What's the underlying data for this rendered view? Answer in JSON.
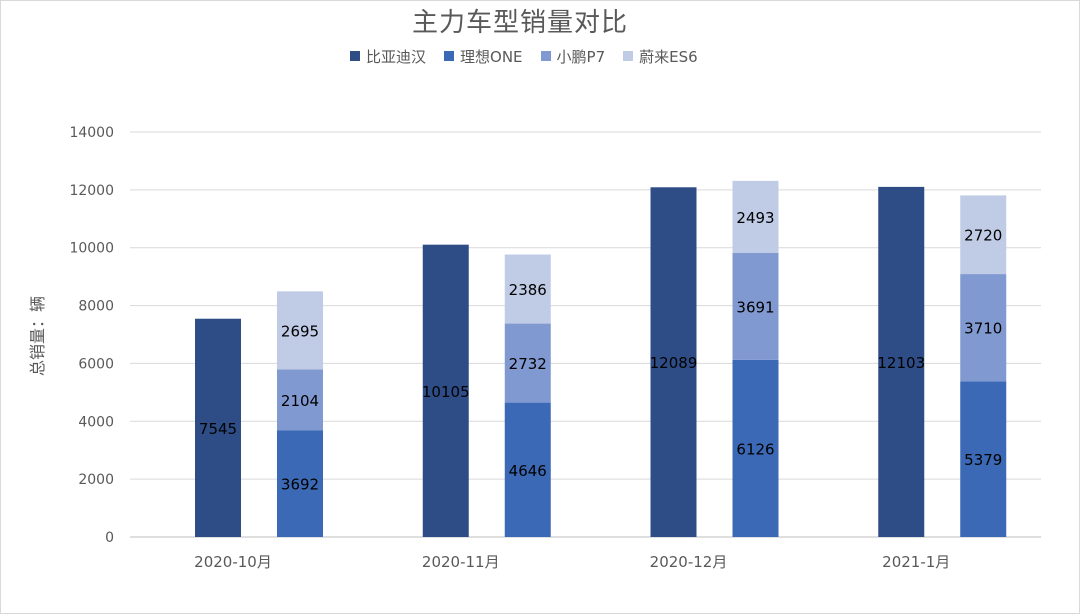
{
  "chart_data": {
    "type": "bar",
    "title": "主力车型销量对比",
    "ylabel": "总销量：辆",
    "xlabel": "",
    "ylim": [
      0,
      14000
    ],
    "yticks": [
      0,
      2000,
      4000,
      6000,
      8000,
      10000,
      12000,
      14000
    ],
    "grid": true,
    "legend_position": "top",
    "categories": [
      "2020-10月",
      "2020-11月",
      "2020-12月",
      "2021-1月"
    ],
    "series": [
      {
        "name": "比亚迪汉",
        "color": "#2e4d87",
        "stack": "a",
        "values": [
          7545,
          10105,
          12089,
          12103
        ]
      },
      {
        "name": "理想ONE",
        "color": "#3c69b5",
        "stack": "b",
        "values": [
          3692,
          4646,
          6126,
          5379
        ]
      },
      {
        "name": "小鹏P7",
        "color": "#8199d1",
        "stack": "b",
        "values": [
          2104,
          2732,
          3691,
          3710
        ]
      },
      {
        "name": "蔚来ES6",
        "color": "#c0cbe6",
        "stack": "b",
        "values": [
          2695,
          2386,
          2493,
          2720
        ]
      }
    ]
  }
}
